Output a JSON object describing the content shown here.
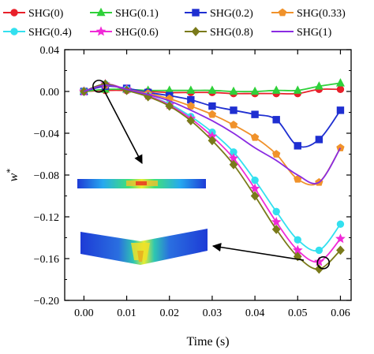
{
  "chart_data": {
    "type": "line",
    "xlabel": "Time (s)",
    "ylabel": "w*",
    "ylabel_main": "w",
    "ylabel_sup": "*",
    "xlim": [
      -0.0045,
      0.0625
    ],
    "ylim": [
      -0.2,
      0.04
    ],
    "x_ticks": [
      0.0,
      0.01,
      0.02,
      0.03,
      0.04,
      0.05,
      0.06
    ],
    "x_tick_labels": [
      "0.00",
      "0.01",
      "0.02",
      "0.03",
      "0.04",
      "0.05",
      "0.06"
    ],
    "y_ticks": [
      0.04,
      0.0,
      -0.04,
      -0.08,
      -0.12,
      -0.16,
      -0.2
    ],
    "y_tick_labels": [
      "0.04",
      "0.00",
      "−0.04",
      "−0.08",
      "−0.12",
      "−0.16",
      "−0.20"
    ],
    "grid": false,
    "legend_position": "top",
    "x": [
      0.0,
      0.005,
      0.01,
      0.015,
      0.02,
      0.025,
      0.03,
      0.035,
      0.04,
      0.045,
      0.05,
      0.055,
      0.06
    ],
    "series": [
      {
        "name": "SHG(0)",
        "color": "#e8202a",
        "marker": "circle",
        "values": [
          0.0,
          0.001,
          0.001,
          0.0,
          -0.001,
          -0.001,
          -0.001,
          -0.002,
          -0.002,
          -0.002,
          -0.002,
          0.002,
          0.002
        ]
      },
      {
        "name": "SHG(0.1)",
        "color": "#2fd13a",
        "marker": "triangle",
        "values": [
          0.0,
          0.002,
          0.002,
          0.001,
          0.001,
          0.001,
          0.001,
          0.0,
          0.0,
          0.001,
          0.001,
          0.005,
          0.008
        ]
      },
      {
        "name": "SHG(0.2)",
        "color": "#1f2fd1",
        "marker": "square",
        "values": [
          0.0,
          0.005,
          0.003,
          -0.001,
          -0.004,
          -0.008,
          -0.014,
          -0.018,
          -0.022,
          -0.027,
          -0.052,
          -0.046,
          -0.018
        ]
      },
      {
        "name": "SHG(0.33)",
        "color": "#f0922b",
        "marker": "pentagon",
        "values": [
          0.0,
          0.006,
          0.002,
          -0.002,
          -0.007,
          -0.014,
          -0.022,
          -0.032,
          -0.044,
          -0.06,
          -0.084,
          -0.087,
          -0.054
        ]
      },
      {
        "name": "SHG(0.4)",
        "color": "#33e0ef",
        "marker": "circle",
        "values": [
          0.0,
          0.007,
          0.002,
          -0.004,
          -0.012,
          -0.024,
          -0.039,
          -0.058,
          -0.085,
          -0.115,
          -0.142,
          -0.152,
          -0.127
        ]
      },
      {
        "name": "SHG(0.6)",
        "color": "#f02ad7",
        "marker": "star",
        "values": [
          0.0,
          0.007,
          0.002,
          -0.004,
          -0.013,
          -0.026,
          -0.043,
          -0.064,
          -0.093,
          -0.125,
          -0.152,
          -0.163,
          -0.141
        ]
      },
      {
        "name": "SHG(0.8)",
        "color": "#7a7a1a",
        "marker": "diamond",
        "values": [
          0.0,
          0.007,
          0.001,
          -0.005,
          -0.014,
          -0.028,
          -0.047,
          -0.07,
          -0.1,
          -0.132,
          -0.158,
          -0.17,
          -0.152
        ]
      },
      {
        "name": "SHG(1)",
        "color": "#8a2be2",
        "marker": "none",
        "values": [
          0.0,
          0.006,
          0.002,
          -0.003,
          -0.009,
          -0.018,
          -0.028,
          -0.04,
          -0.054,
          -0.066,
          -0.08,
          -0.087,
          -0.054
        ]
      }
    ],
    "annotations": [
      {
        "type": "circle",
        "x": 0.0035,
        "y": 0.005
      },
      {
        "type": "circle",
        "x": 0.056,
        "y": -0.164
      }
    ]
  }
}
